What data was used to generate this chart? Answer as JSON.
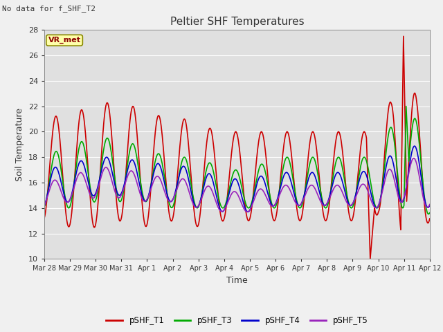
{
  "title": "Peltier SHF Temperatures",
  "subtitle": "No data for f_SHF_T2",
  "xlabel": "Time",
  "ylabel": "Soil Temperature",
  "ylim": [
    10,
    28
  ],
  "yticks": [
    10,
    12,
    14,
    16,
    18,
    20,
    22,
    24,
    26,
    28
  ],
  "fig_bg": "#f0f0f0",
  "plot_bg": "#e0e0e0",
  "annotation_text": "VR_met",
  "series": {
    "pSHF_T1": {
      "color": "#cc0000",
      "lw": 1.2
    },
    "pSHF_T3": {
      "color": "#00aa00",
      "lw": 1.2
    },
    "pSHF_T4": {
      "color": "#0000cc",
      "lw": 1.2
    },
    "pSHF_T5": {
      "color": "#9922bb",
      "lw": 1.2
    }
  },
  "x_tick_labels": [
    "Mar 28",
    "Mar 29",
    "Mar 30",
    "Mar 31",
    "Apr 1",
    "Apr 2",
    "Apr 3",
    "Apr 4",
    "Apr 5",
    "Apr 6",
    "Apr 7",
    "Apr 8",
    "Apr 9",
    "Apr 10",
    "Apr 11",
    "Apr 12"
  ],
  "x_tick_positions": [
    0,
    1,
    2,
    3,
    4,
    5,
    6,
    7,
    8,
    9,
    10,
    11,
    12,
    13,
    14,
    15
  ]
}
